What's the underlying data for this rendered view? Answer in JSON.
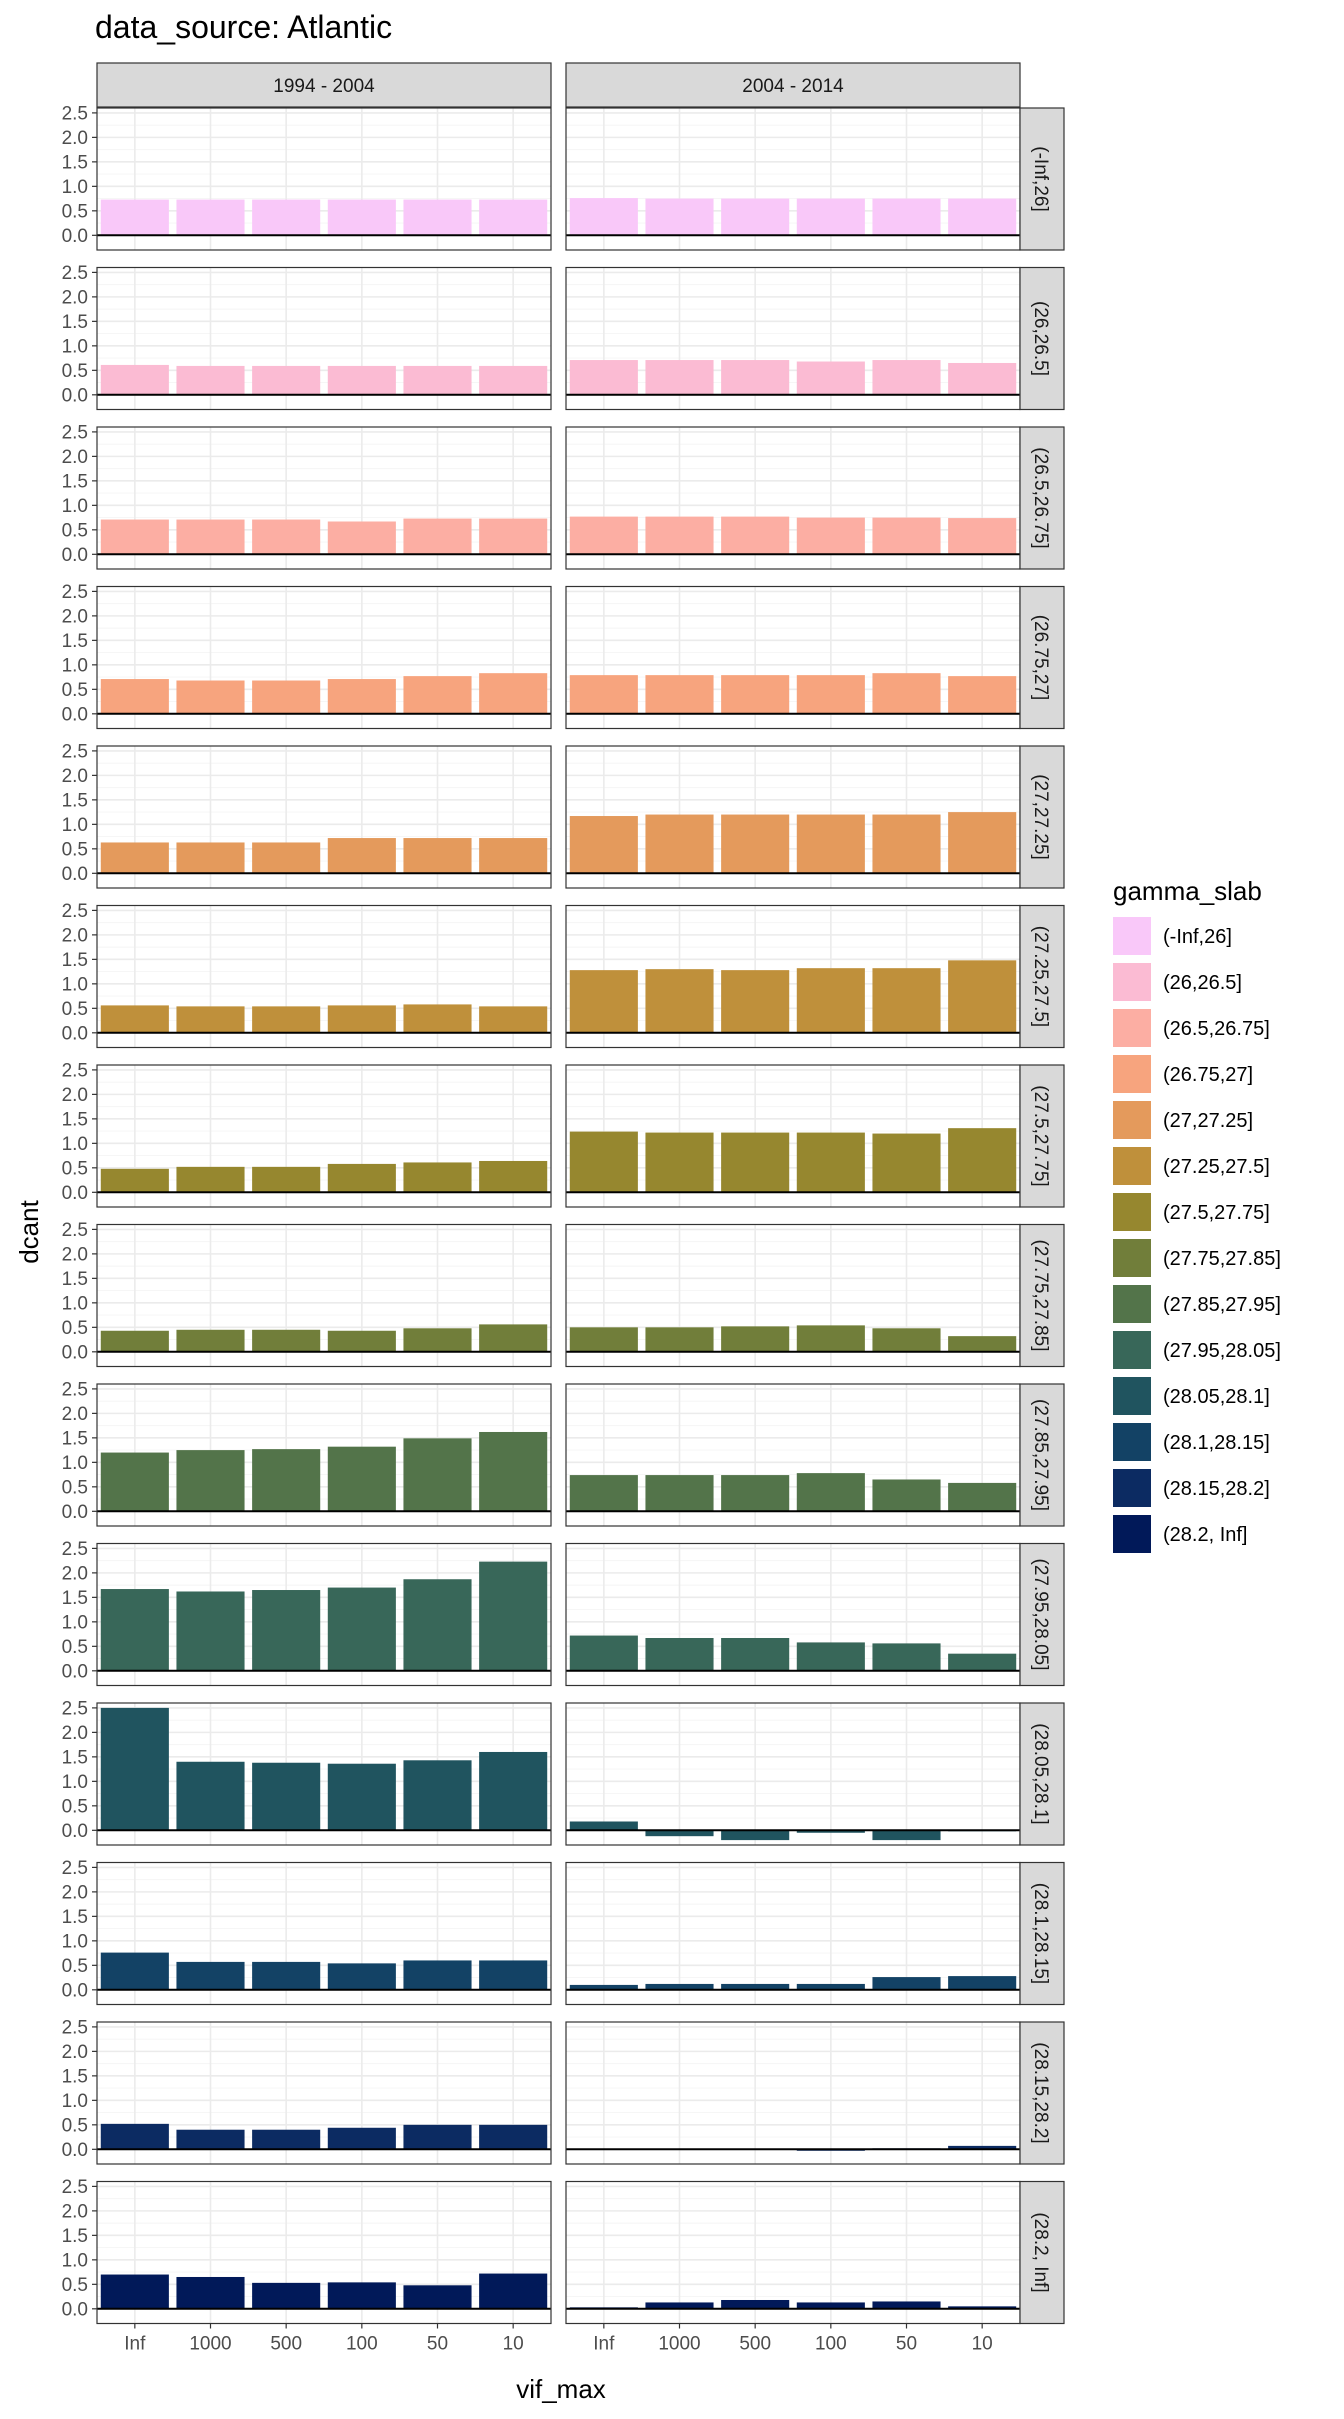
{
  "chart_data": {
    "type": "bar",
    "title": "data_source: Atlantic",
    "xlabel": "vif_max",
    "ylabel": "dcant",
    "categories": [
      "Inf",
      "1000",
      "500",
      "100",
      "50",
      "10"
    ],
    "ylim": [
      -0.3,
      2.6
    ],
    "yticks": [
      "0.0",
      "0.5",
      "1.0",
      "1.5",
      "2.0",
      "2.5"
    ],
    "columns": [
      "1994 - 2004",
      "2004 - 2014"
    ],
    "legend": {
      "title": "gamma_slab",
      "position": "right"
    },
    "grid": true,
    "facets": [
      {
        "name": "(-Inf,26]",
        "color": "#F9C8F9",
        "values": [
          [
            0.73,
            0.73,
            0.73,
            0.73,
            0.73,
            0.73
          ],
          [
            0.76,
            0.75,
            0.75,
            0.75,
            0.75,
            0.75
          ]
        ]
      },
      {
        "name": "(26,26.5]",
        "color": "#FBBBD3",
        "values": [
          [
            0.61,
            0.59,
            0.59,
            0.59,
            0.59,
            0.59
          ],
          [
            0.71,
            0.71,
            0.71,
            0.68,
            0.71,
            0.65
          ]
        ]
      },
      {
        "name": "(26.5,26.75]",
        "color": "#FCAEA3",
        "values": [
          [
            0.71,
            0.71,
            0.71,
            0.67,
            0.73,
            0.73
          ],
          [
            0.77,
            0.77,
            0.77,
            0.75,
            0.75,
            0.74
          ]
        ]
      },
      {
        "name": "(26.75,27]",
        "color": "#F7A47E",
        "values": [
          [
            0.71,
            0.68,
            0.68,
            0.71,
            0.77,
            0.83
          ],
          [
            0.79,
            0.79,
            0.79,
            0.79,
            0.83,
            0.77
          ]
        ]
      },
      {
        "name": "(27,27.25]",
        "color": "#E49A5C",
        "values": [
          [
            0.63,
            0.63,
            0.63,
            0.72,
            0.72,
            0.72
          ],
          [
            1.17,
            1.2,
            1.2,
            1.2,
            1.2,
            1.25
          ]
        ]
      },
      {
        "name": "(27.25,27.5]",
        "color": "#BF903B",
        "values": [
          [
            0.56,
            0.54,
            0.54,
            0.56,
            0.58,
            0.54
          ],
          [
            1.28,
            1.3,
            1.28,
            1.32,
            1.32,
            1.48
          ]
        ]
      },
      {
        "name": "(27.5,27.75]",
        "color": "#96872F",
        "values": [
          [
            0.48,
            0.52,
            0.52,
            0.58,
            0.61,
            0.64
          ],
          [
            1.24,
            1.22,
            1.22,
            1.22,
            1.2,
            1.31
          ]
        ]
      },
      {
        "name": "(27.75,27.85]",
        "color": "#717E3A",
        "values": [
          [
            0.43,
            0.45,
            0.45,
            0.43,
            0.48,
            0.56
          ],
          [
            0.5,
            0.5,
            0.52,
            0.54,
            0.48,
            0.32
          ]
        ]
      },
      {
        "name": "(27.85,27.95]",
        "color": "#53744A",
        "values": [
          [
            1.2,
            1.25,
            1.27,
            1.32,
            1.49,
            1.62
          ],
          [
            0.74,
            0.74,
            0.74,
            0.78,
            0.65,
            0.58
          ]
        ]
      },
      {
        "name": "(27.95,28.05]",
        "color": "#386759",
        "values": [
          [
            1.67,
            1.62,
            1.65,
            1.7,
            1.87,
            2.23
          ],
          [
            0.72,
            0.67,
            0.67,
            0.58,
            0.56,
            0.35
          ]
        ]
      },
      {
        "name": "(28.05,28.1]",
        "color": "#20545F",
        "values": [
          [
            2.5,
            1.4,
            1.38,
            1.36,
            1.43,
            1.6
          ],
          [
            0.18,
            -0.12,
            -0.2,
            -0.05,
            -0.2,
            -0.02
          ]
        ]
      },
      {
        "name": "(28.1,28.15]",
        "color": "#134265",
        "values": [
          [
            0.76,
            0.57,
            0.57,
            0.54,
            0.6,
            0.6
          ],
          [
            0.1,
            0.12,
            0.12,
            0.12,
            0.26,
            0.28
          ]
        ]
      },
      {
        "name": "(28.15,28.2]",
        "color": "#0C2B62",
        "values": [
          [
            0.52,
            0.4,
            0.4,
            0.44,
            0.5,
            0.5
          ],
          [
            0.0,
            0.0,
            0.0,
            -0.03,
            0.02,
            0.07
          ]
        ]
      },
      {
        "name": "(28.2, Inf]",
        "color": "#011959",
        "values": [
          [
            0.7,
            0.65,
            0.53,
            0.54,
            0.48,
            0.72
          ],
          [
            0.03,
            0.13,
            0.18,
            0.13,
            0.15,
            0.05
          ]
        ]
      }
    ]
  }
}
